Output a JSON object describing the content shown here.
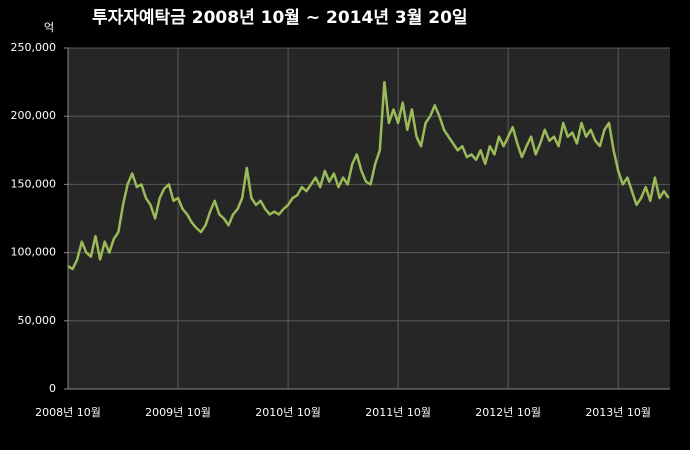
{
  "chart_data": {
    "type": "line",
    "title": "투자자예탁금    2008년 10월 ~ 2014년 3월 20일",
    "y_label": "억",
    "categories": [
      "2008년 10월",
      null,
      null,
      null,
      null,
      null,
      null,
      null,
      null,
      null,
      null,
      null,
      null,
      null,
      null,
      null,
      null,
      null,
      null,
      null,
      null,
      null,
      null,
      null,
      "2009년 10월",
      null,
      null,
      null,
      null,
      null,
      null,
      null,
      null,
      null,
      null,
      null,
      null,
      null,
      null,
      null,
      null,
      null,
      null,
      null,
      null,
      null,
      null,
      null,
      "2010년 10월",
      null,
      null,
      null,
      null,
      null,
      null,
      null,
      null,
      null,
      null,
      null,
      null,
      null,
      null,
      null,
      null,
      null,
      null,
      null,
      null,
      null,
      null,
      null,
      "2011년 10월",
      null,
      null,
      null,
      null,
      null,
      null,
      null,
      null,
      null,
      null,
      null,
      null,
      null,
      null,
      null,
      null,
      null,
      null,
      null,
      null,
      null,
      null,
      null,
      "2012년 10월",
      null,
      null,
      null,
      null,
      null,
      null,
      null,
      null,
      null,
      null,
      null,
      null,
      null,
      null,
      null,
      null,
      null,
      null,
      null,
      null,
      null,
      null,
      null,
      "2013년 10월",
      null,
      null,
      null,
      null,
      null,
      null,
      null,
      null,
      null,
      null,
      null
    ],
    "values": [
      90000,
      88000,
      95000,
      108000,
      100000,
      97000,
      112000,
      95000,
      108000,
      100000,
      110000,
      115000,
      135000,
      150000,
      158000,
      148000,
      150000,
      140000,
      135000,
      125000,
      140000,
      147000,
      150000,
      138000,
      140000,
      132000,
      128000,
      122000,
      118000,
      115000,
      120000,
      130000,
      138000,
      128000,
      125000,
      120000,
      128000,
      132000,
      140000,
      162000,
      140000,
      135000,
      138000,
      132000,
      128000,
      130000,
      128000,
      132000,
      135000,
      140000,
      142000,
      148000,
      145000,
      150000,
      155000,
      148000,
      160000,
      152000,
      158000,
      148000,
      155000,
      150000,
      165000,
      172000,
      160000,
      152000,
      150000,
      165000,
      175000,
      225000,
      195000,
      205000,
      195000,
      210000,
      190000,
      205000,
      185000,
      178000,
      195000,
      200000,
      208000,
      200000,
      190000,
      185000,
      180000,
      175000,
      178000,
      170000,
      172000,
      168000,
      175000,
      165000,
      178000,
      172000,
      185000,
      178000,
      185000,
      192000,
      180000,
      170000,
      178000,
      185000,
      172000,
      180000,
      190000,
      182000,
      185000,
      178000,
      195000,
      185000,
      188000,
      180000,
      195000,
      185000,
      190000,
      182000,
      178000,
      190000,
      195000,
      175000,
      160000,
      150000,
      155000,
      145000,
      135000,
      140000,
      148000,
      138000,
      155000,
      140000,
      145000,
      140000
    ],
    "color": "#9bbb59",
    "ylim": [
      0,
      250000
    ],
    "yticks": [
      0,
      {
        "value": 50000,
        "label": "50,000"
      },
      {
        "value": 100000,
        "label": "100,000"
      },
      {
        "value": 150000,
        "label": "150,000"
      },
      {
        "value": 200000,
        "label": "200,000"
      },
      {
        "value": 250000,
        "label": "250,000"
      }
    ],
    "grid": true
  }
}
